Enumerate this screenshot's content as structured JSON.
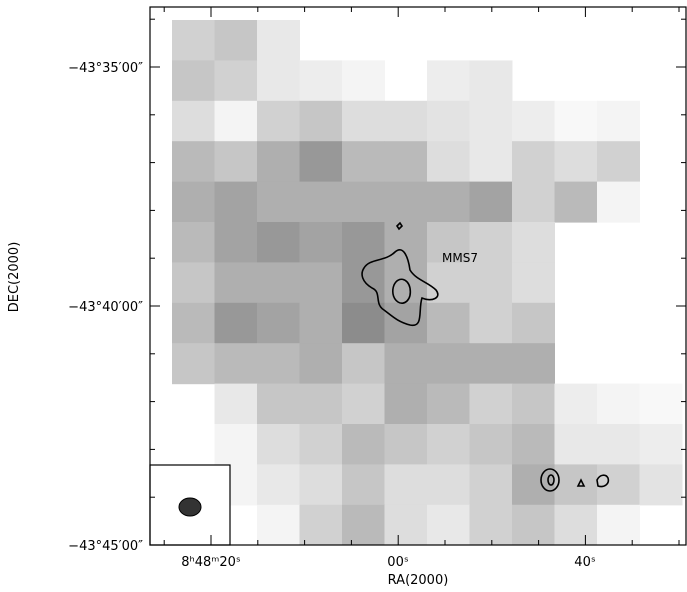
{
  "figure": {
    "y_axis": {
      "title": "DEC(2000)",
      "tick_labels": [
        "−43°35′00″",
        "−43°40′00″",
        "−43°45′00″"
      ]
    },
    "x_axis": {
      "title": "RA(2000)",
      "tick_labels": [
        "8ʰ48ᵐ20ˢ",
        "00ˢ",
        "40ˢ"
      ]
    },
    "annotation": "MMS7"
  }
}
